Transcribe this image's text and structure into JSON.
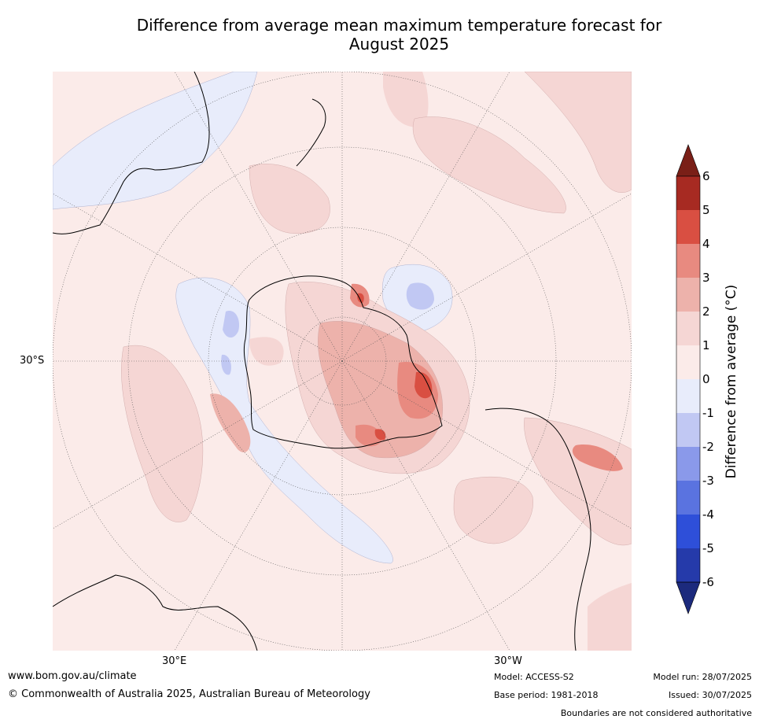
{
  "title_line1": "Difference from average mean maximum temperature forecast for",
  "title_line2": "August 2025",
  "map": {
    "lat_label": "30°S",
    "lon_label_east": "30°E",
    "lon_label_west": "30°W"
  },
  "colorbar": {
    "label": "Difference from average (°C)",
    "ticks": [
      "6",
      "5",
      "4",
      "3",
      "2",
      "1",
      "0",
      "-1",
      "-2",
      "-3",
      "-4",
      "-5",
      "-6"
    ],
    "colors": {
      "over": "#7a1f17",
      "5_to_6": "#a72a22",
      "4_to_5": "#d94f42",
      "3_to_4": "#e88a80",
      "2_to_3": "#edb2ab",
      "1_to_2": "#f5d6d4",
      "0_to_1": "#fbebe9",
      "m1_to_0": "#e8ecfb",
      "m2_to_m1": "#c1c8f3",
      "m3_to_m2": "#8a99ea",
      "m4_to_m3": "#5a73e0",
      "m5_to_m4": "#2e4fd9",
      "m6_to_m5": "#253aaa",
      "under": "#1c2a7d"
    }
  },
  "footer": {
    "website": "www.bom.gov.au/climate",
    "copyright": "© Commonwealth of Australia 2025, Australian Bureau of Meteorology",
    "model": "Model: ACCESS-S2",
    "base_period": "Base period: 1981-2018",
    "model_run": "Model run: 28/07/2025",
    "issued": "Issued: 30/07/2025",
    "boundaries": "Boundaries are not considered authoritative"
  }
}
